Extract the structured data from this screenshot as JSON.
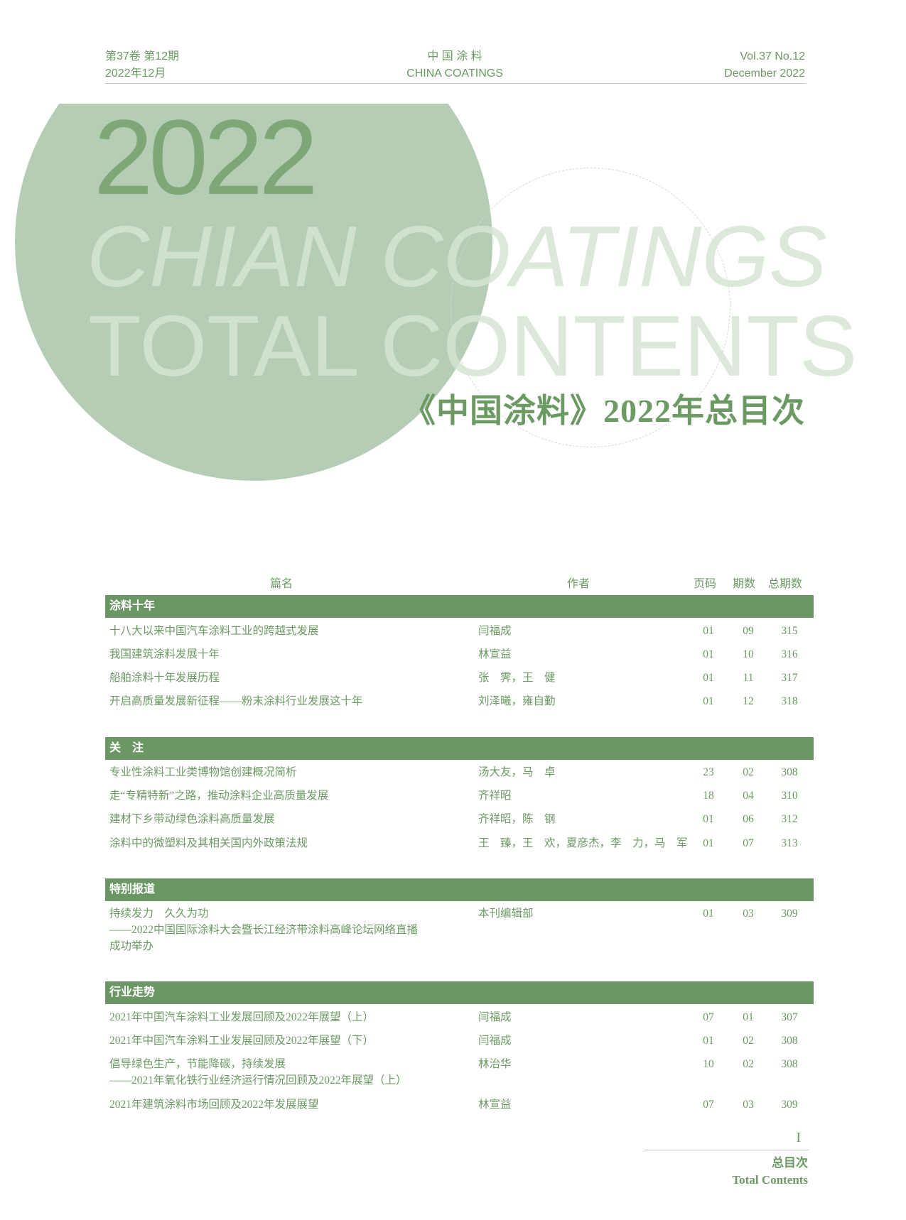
{
  "header": {
    "left_line1": "第37卷 第12期",
    "left_line2": "2022年12月",
    "center_line1": "中 国 涂 料",
    "center_line2": "CHINA COATINGS",
    "right_line1": "Vol.37  No.12",
    "right_line2": "December  2022"
  },
  "cover": {
    "year": "2022",
    "line1": "CHIAN COATINGS",
    "line2": "TOTAL CONTENTS",
    "title": "《中国涂料》2022年总目次"
  },
  "colors": {
    "accent": "#6a9763",
    "circle": "#b5cdb5"
  },
  "table": {
    "columns": [
      "篇名",
      "作者",
      "页码",
      "期数",
      "总期数"
    ],
    "sections": [
      {
        "name": "涂料十年",
        "rows": [
          {
            "title": [
              "十八大以来中国汽车涂料工业的跨越式发展"
            ],
            "author": "闫福成",
            "page": "01",
            "issue": "09",
            "total": "315"
          },
          {
            "title": [
              "我国建筑涂料发展十年"
            ],
            "author": "林宣益",
            "page": "01",
            "issue": "10",
            "total": "316"
          },
          {
            "title": [
              "船舶涂料十年发展历程"
            ],
            "author": "张　霁，王　健",
            "page": "01",
            "issue": "11",
            "total": "317"
          },
          {
            "title": [
              "开启高质量发展新征程——粉末涂料行业发展这十年"
            ],
            "author": "刘泽曦，雍自勤",
            "page": "01",
            "issue": "12",
            "total": "318"
          }
        ]
      },
      {
        "name": "关　注",
        "rows": [
          {
            "title": [
              "专业性涂料工业类博物馆创建概况简析"
            ],
            "author": "汤大友，马　卓",
            "page": "23",
            "issue": "02",
            "total": "308"
          },
          {
            "title": [
              "走“专精特新”之路，推动涂料企业高质量发展"
            ],
            "author": "齐祥昭",
            "page": "18",
            "issue": "04",
            "total": "310"
          },
          {
            "title": [
              "建材下乡带动绿色涂料高质量发展"
            ],
            "author": "齐祥昭，陈　钢",
            "page": "01",
            "issue": "06",
            "total": "312"
          },
          {
            "title": [
              "涂料中的微塑料及其相关国内外政策法规"
            ],
            "author": "王　臻，王　欢，夏彦杰，李　力，马　军",
            "page": "01",
            "issue": "07",
            "total": "313"
          }
        ]
      },
      {
        "name": "特别报道",
        "rows": [
          {
            "title": [
              "持续发力　久久为功",
              "——2022中国国际涂料大会暨长江经济带涂料高峰论坛网络直播",
              "成功举办"
            ],
            "author": "本刊编辑部",
            "page": "01",
            "issue": "03",
            "total": "309"
          }
        ]
      },
      {
        "name": "行业走势",
        "rows": [
          {
            "title": [
              "2021年中国汽车涂料工业发展回顾及2022年展望（上）"
            ],
            "author": "闫福成",
            "page": "07",
            "issue": "01",
            "total": "307"
          },
          {
            "title": [
              "2021年中国汽车涂料工业发展回顾及2022年展望（下）"
            ],
            "author": "闫福成",
            "page": "01",
            "issue": "02",
            "total": "308"
          },
          {
            "title": [
              "倡导绿色生产，节能降碳，持续发展",
              "——2021年氧化铁行业经济运行情况回顾及2022年展望（上）"
            ],
            "author": "林治华",
            "page": "10",
            "issue": "02",
            "total": "308"
          },
          {
            "title": [
              "2021年建筑涂料市场回顾及2022年发展展望"
            ],
            "author": "林宣益",
            "page": "07",
            "issue": "03",
            "total": "309"
          }
        ]
      }
    ]
  },
  "footer": {
    "page_number": "I",
    "section_cn": "总目次",
    "section_en": "Total  Contents"
  }
}
